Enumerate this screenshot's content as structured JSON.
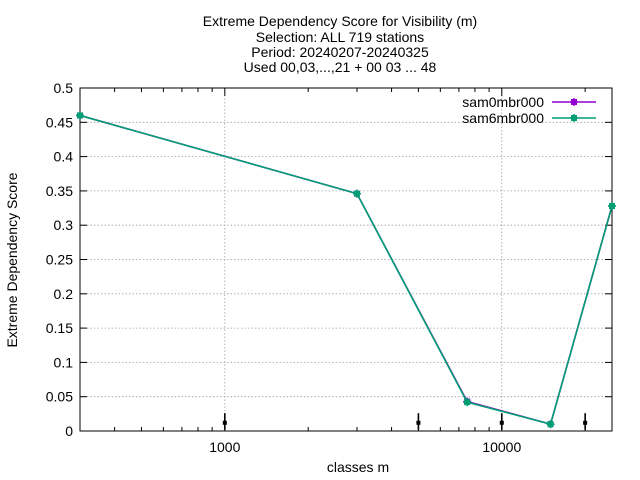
{
  "chart_data": {
    "type": "line",
    "title_lines": [
      "Extreme Dependency Score  for Visibility (m)",
      "Selection: ALL    719 stations",
      "Period: 20240207-20240325",
      "Used 00,03,...,21 + 00 03 ... 48"
    ],
    "xlabel": "classes m",
    "ylabel": "Extreme Dependency Score",
    "x_scale": "log",
    "xlim": [
      300,
      25000
    ],
    "ylim": [
      0,
      0.5
    ],
    "x_ticks": [
      {
        "value": 1000,
        "label": "1000"
      },
      {
        "value": 10000,
        "label": "10000"
      }
    ],
    "y_ticks": [
      {
        "value": 0,
        "label": "0"
      },
      {
        "value": 0.05,
        "label": "0.05"
      },
      {
        "value": 0.1,
        "label": "0.1"
      },
      {
        "value": 0.15,
        "label": "0.15"
      },
      {
        "value": 0.2,
        "label": "0.2"
      },
      {
        "value": 0.25,
        "label": "0.25"
      },
      {
        "value": 0.3,
        "label": "0.3"
      },
      {
        "value": 0.35,
        "label": "0.35"
      },
      {
        "value": 0.4,
        "label": "0.4"
      },
      {
        "value": 0.45,
        "label": "0.45"
      },
      {
        "value": 0.5,
        "label": "0.5"
      }
    ],
    "grid": true,
    "legend_position": "top-right",
    "series": [
      {
        "name": "sam0mbr000",
        "color": "#9400d3",
        "x": [
          300,
          3000,
          7500,
          15000,
          25000
        ],
        "y": [
          0.46,
          0.346,
          0.043,
          0.01,
          0.328
        ]
      },
      {
        "name": "sam6mbr000",
        "color": "#009e73",
        "x": [
          300,
          3000,
          7500,
          15000,
          25000
        ],
        "y": [
          0.46,
          0.346,
          0.042,
          0.01,
          0.328
        ]
      }
    ],
    "sample_markers": {
      "x": [
        1000,
        5000,
        10000,
        20000
      ],
      "y": [
        0.012,
        0.012,
        0.012,
        0.012
      ],
      "err_low": [
        0.002,
        0.002,
        0.002,
        0.002
      ],
      "err_high": [
        0.026,
        0.026,
        0.026,
        0.026
      ]
    }
  }
}
